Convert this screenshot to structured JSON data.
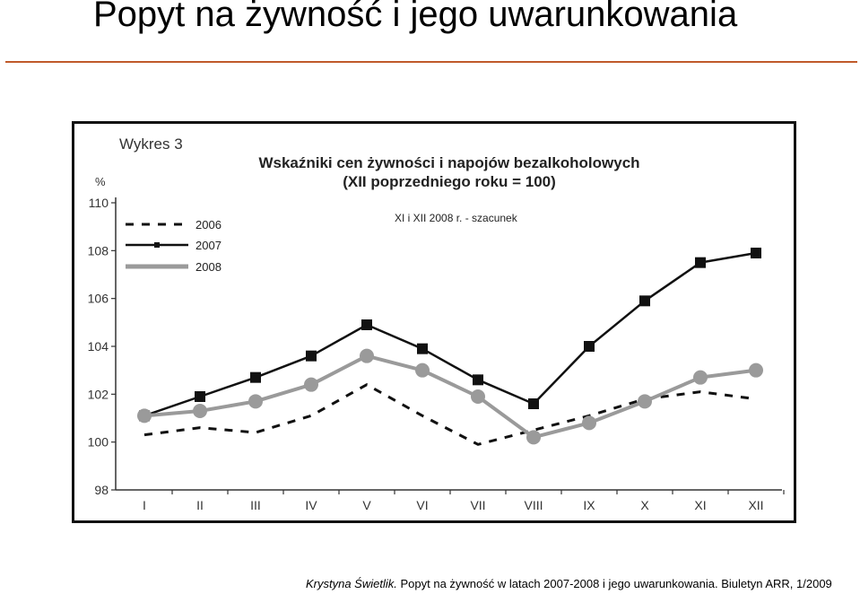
{
  "slide": {
    "title": "Popyt na żywność i jego uwarunkowania",
    "caption_author": "Krystyna Świetlik.",
    "caption_text": " Popyt na żywność w latach 2007-2008 i jego uwarunkowania. Biuletyn ARR, 1/2009"
  },
  "colors": {
    "rule": "#c05a2a",
    "series_2006": "#111111",
    "series_2007": "#111111",
    "series_2008": "#9a9a9a"
  },
  "chart_data": {
    "type": "line",
    "label": "Wykres 3",
    "title": "Wskaźniki cen żywności i napojów bezalkoholowych",
    "subtitle": "(XII poprzedniego roku = 100)",
    "annotation": "XI i XII 2008 r. - szacunek",
    "ylabel": "%",
    "xlabel": "",
    "ylim": [
      98,
      110
    ],
    "yticks": [
      98,
      100,
      102,
      104,
      106,
      108,
      110
    ],
    "categories": [
      "I",
      "II",
      "III",
      "IV",
      "V",
      "VI",
      "VII",
      "VIII",
      "IX",
      "X",
      "XI",
      "XII"
    ],
    "legend_position": "top-left",
    "grid": false,
    "series": [
      {
        "name": "2006",
        "style": "dashed",
        "values": [
          100.3,
          100.6,
          100.4,
          101.1,
          102.4,
          101.1,
          99.9,
          100.5,
          101.1,
          101.8,
          102.1,
          101.8
        ]
      },
      {
        "name": "2007",
        "style": "square",
        "values": [
          101.1,
          101.9,
          102.7,
          103.6,
          104.9,
          103.9,
          102.6,
          101.6,
          104.0,
          105.9,
          107.5,
          107.9
        ]
      },
      {
        "name": "2008",
        "style": "circle",
        "values": [
          101.1,
          101.3,
          101.7,
          102.4,
          103.6,
          103.0,
          101.9,
          100.2,
          100.8,
          101.7,
          102.7,
          103.0
        ]
      }
    ]
  }
}
